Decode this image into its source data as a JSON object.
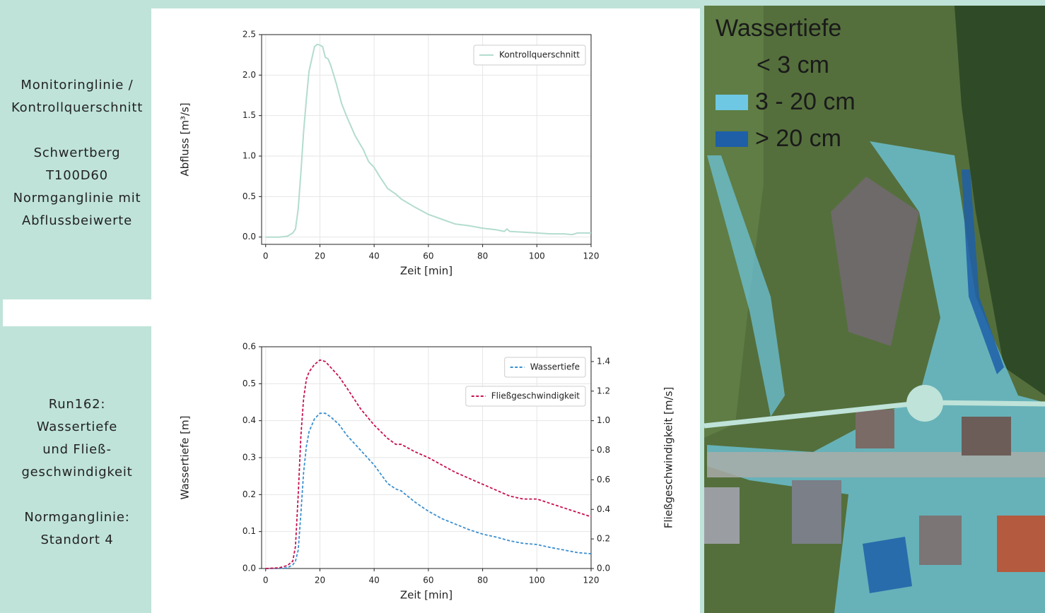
{
  "panels": [
    {
      "paragraphs": [
        [
          "Monitoringlinie /",
          "Kontrollquerschnitt"
        ],
        [
          "Schwertberg",
          "T100D60",
          "Normganglinie mit",
          "Abflussbeiwerte"
        ]
      ]
    },
    {
      "paragraphs": [
        [
          "Run162:",
          "Wassertiefe",
          "und Fließ-",
          "geschwindigkeit"
        ],
        [
          "Normganglinie:",
          "Standort 4"
        ]
      ]
    }
  ],
  "map": {
    "legend": {
      "title": "Wassertiefe",
      "items": [
        "< 3 cm",
        "3 - 20 cm",
        "> 20 cm"
      ]
    }
  },
  "chart_data": [
    {
      "type": "line",
      "xlabel": "Zeit [min]",
      "ylabel": "Abfluss [m³/s]",
      "x": [
        0,
        5,
        8,
        10,
        11,
        12,
        13,
        14,
        15,
        16,
        17,
        18,
        19,
        20,
        21,
        22,
        23,
        24,
        26,
        28,
        30,
        33,
        36,
        38,
        40,
        42,
        45,
        48,
        50,
        55,
        60,
        65,
        70,
        75,
        80,
        85,
        88,
        89,
        90,
        95,
        100,
        105,
        110,
        113,
        115,
        120
      ],
      "xlim": [
        -1.5,
        120
      ],
      "ylim": [
        -0.09,
        2.5
      ],
      "xticks": [
        0,
        20,
        40,
        60,
        80,
        100,
        120
      ],
      "yticks": [
        {
          "value": 0,
          "label": "0.0"
        },
        0.5,
        {
          "value": 1,
          "label": "1.0"
        },
        1.5,
        {
          "value": 2,
          "label": "2.0"
        },
        2.5
      ],
      "grid": true,
      "legend": "upper right",
      "series": [
        {
          "name": "Kontrollquerschnitt",
          "color": "#b3dccf",
          "line_style": "solid",
          "values": [
            0,
            0,
            0.01,
            0.05,
            0.1,
            0.35,
            0.8,
            1.3,
            1.7,
            2.05,
            2.2,
            2.35,
            2.38,
            2.37,
            2.35,
            2.22,
            2.2,
            2.12,
            1.9,
            1.65,
            1.48,
            1.25,
            1.08,
            0.93,
            0.86,
            0.75,
            0.6,
            0.53,
            0.47,
            0.37,
            0.28,
            0.22,
            0.16,
            0.14,
            0.11,
            0.09,
            0.07,
            0.1,
            0.07,
            0.06,
            0.05,
            0.04,
            0.04,
            0.03,
            0.05,
            0.05
          ]
        }
      ]
    },
    {
      "type": "line",
      "xlabel": "Zeit [min]",
      "ylabel": "Wassertiefe [m]",
      "y2label": "Fließgeschwindigkeit [m/s]",
      "x": [
        0,
        5,
        8,
        10,
        11,
        12,
        13,
        14,
        15,
        16,
        18,
        20,
        22,
        24,
        27,
        30,
        35,
        40,
        45,
        48,
        50,
        55,
        60,
        65,
        70,
        75,
        80,
        85,
        90,
        95,
        100,
        105,
        110,
        115,
        120
      ],
      "xlim": [
        -1.5,
        120
      ],
      "ylim": [
        0,
        0.6
      ],
      "y2lim": [
        0,
        1.5
      ],
      "xticks": [
        0,
        20,
        40,
        60,
        80,
        100,
        120
      ],
      "yticks": [
        {
          "value": 0,
          "label": "0.0"
        },
        0.1,
        0.2,
        0.3,
        0.4,
        0.5,
        0.6
      ],
      "y2ticks": [
        {
          "value": 0,
          "label": "0.0"
        },
        0.2,
        0.4,
        0.6,
        0.8,
        {
          "value": 1,
          "label": "1.0"
        },
        1.2,
        1.4
      ],
      "grid": true,
      "legend": "upper right",
      "series": [
        {
          "name": "Wassertiefe",
          "color": "#3b8fd0",
          "line_style": "dashed",
          "values": [
            0,
            0,
            0.002,
            0.01,
            0.02,
            0.05,
            0.15,
            0.26,
            0.33,
            0.37,
            0.405,
            0.42,
            0.42,
            0.41,
            0.39,
            0.36,
            0.32,
            0.28,
            0.23,
            0.215,
            0.21,
            0.18,
            0.155,
            0.135,
            0.12,
            0.105,
            0.093,
            0.085,
            0.075,
            0.068,
            0.065,
            0.057,
            0.05,
            0.043,
            0.04
          ]
        },
        {
          "name": "Fließgeschwindigkeit",
          "color": "#c8104f",
          "line_style": "dashed",
          "axis": "y2",
          "values": [
            0,
            0.005,
            0.02,
            0.05,
            0.15,
            0.5,
            0.9,
            1.15,
            1.28,
            1.33,
            1.38,
            1.41,
            1.4,
            1.36,
            1.3,
            1.22,
            1.08,
            0.97,
            0.88,
            0.84,
            0.84,
            0.79,
            0.75,
            0.7,
            0.65,
            0.61,
            0.57,
            0.53,
            0.49,
            0.47,
            0.47,
            0.44,
            0.41,
            0.38,
            0.35
          ]
        }
      ]
    }
  ]
}
